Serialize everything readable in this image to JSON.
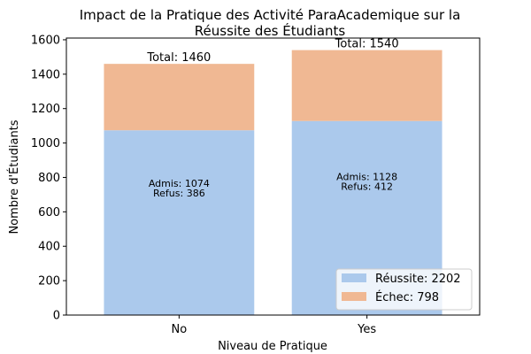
{
  "chart_data": {
    "type": "bar",
    "stacked": true,
    "title": [
      "Impact de la Pratique des Activité ParaAcademique sur la",
      "Réussite des Étudiants"
    ],
    "xlabel": "Niveau de Pratique",
    "ylabel": "Nombre d'Étudiants",
    "categories": [
      "No",
      "Yes"
    ],
    "ylim": [
      0,
      1610
    ],
    "yticks": [
      0,
      200,
      400,
      600,
      800,
      1000,
      1200,
      1400,
      1600
    ],
    "series": [
      {
        "name": "Réussite",
        "values": [
          1074,
          1128
        ],
        "color": "#abc9ec"
      },
      {
        "name": "Échec",
        "values": [
          386,
          412
        ],
        "color": "#f0b893"
      }
    ],
    "total_labels": [
      "Total: 1460",
      "Total: 1540"
    ],
    "bar_annotations": [
      [
        "Admis: 1074",
        "Refus: 386"
      ],
      [
        "Admis: 1128",
        "Refus: 412"
      ]
    ],
    "legend": {
      "position": "lower-right",
      "entries": [
        "Réussite: 2202",
        "Échec: 798"
      ]
    },
    "grid": false
  }
}
